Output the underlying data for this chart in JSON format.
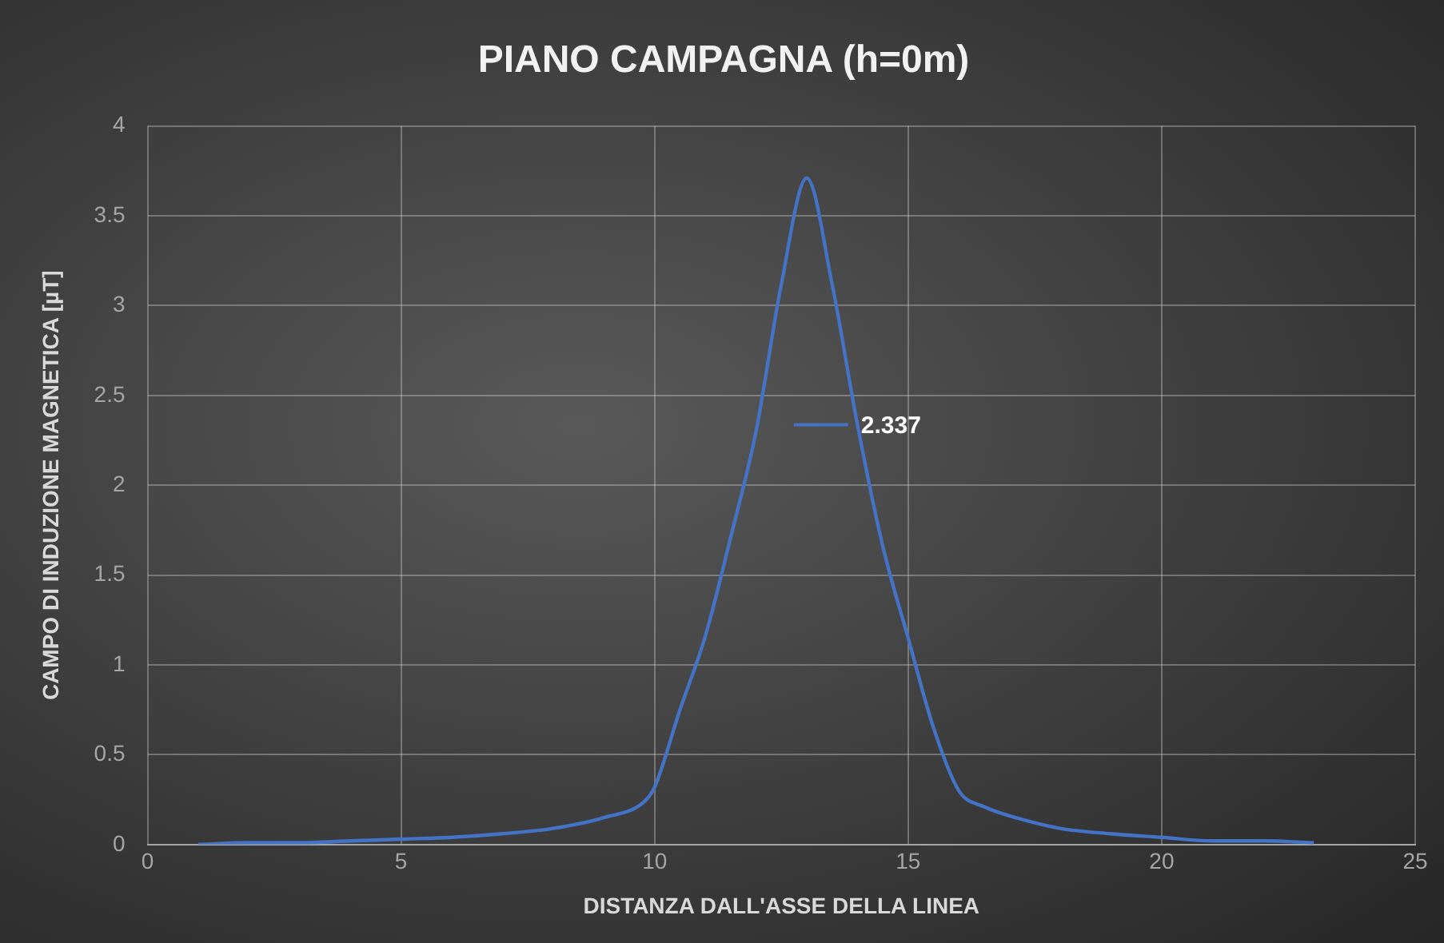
{
  "chart_data": {
    "type": "line",
    "title": "PIANO CAMPAGNA (h=0m)",
    "xlabel": "DISTANZA DALL'ASSE DELLA LINEA",
    "ylabel": "CAMPO DI INDUZIONE MAGNETICA [µT]",
    "x": [
      1,
      2,
      3,
      4,
      5,
      6,
      7,
      8,
      9,
      9.8,
      10,
      10.5,
      11,
      11.5,
      12,
      12.5,
      13,
      13.5,
      14,
      14.5,
      15,
      15.5,
      16,
      16.5,
      17,
      18,
      19,
      20,
      21,
      22,
      23
    ],
    "series": [
      {
        "color": "#4472c4",
        "values": [
          0.0,
          0.01,
          0.01,
          0.02,
          0.03,
          0.04,
          0.06,
          0.09,
          0.15,
          0.24,
          0.32,
          0.75,
          1.16,
          1.71,
          2.3,
          3.12,
          3.71,
          3.12,
          2.337,
          1.66,
          1.15,
          0.65,
          0.3,
          0.21,
          0.16,
          0.09,
          0.06,
          0.04,
          0.02,
          0.02,
          0.01
        ]
      }
    ],
    "annotations": [
      {
        "text": "2.337",
        "x": 14,
        "y": 2.337
      }
    ],
    "xlim": [
      0,
      25
    ],
    "xticks": [
      0,
      5,
      10,
      15,
      20,
      25
    ],
    "ylim": [
      0,
      4
    ],
    "yticks": [
      0,
      0.5,
      1,
      1.5,
      2,
      2.5,
      3,
      3.5,
      4
    ],
    "grid": true,
    "legend": false,
    "marker": "none",
    "line_style": "solid"
  }
}
